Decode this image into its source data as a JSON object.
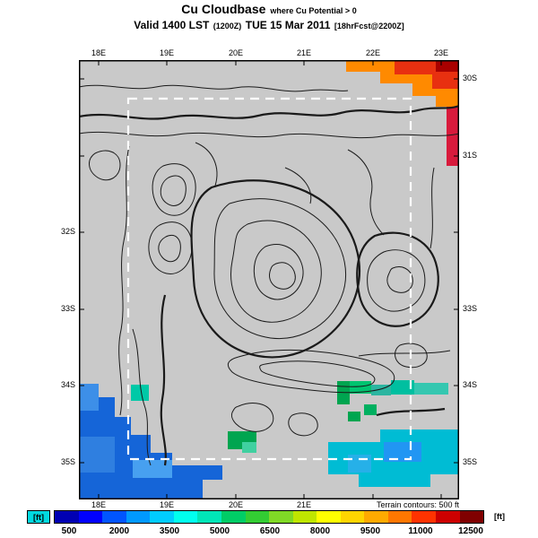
{
  "header": {
    "title": "Cu Cloudbase",
    "title_note": "where Cu Potential > 0",
    "valid_label": "Valid 1400 LST",
    "valid_utc": "(1200Z)",
    "valid_date": "TUE 15 Mar 2011",
    "forecast_note": "[18hrFcst@2200Z]"
  },
  "map": {
    "top_axis": [
      "18E",
      "19E",
      "20E",
      "21E",
      "22E",
      "23E"
    ],
    "bottom_axis": [
      "18E",
      "19E",
      "20E",
      "21E"
    ],
    "left_axis": [
      "32S",
      "33S",
      "34S",
      "35S"
    ],
    "right_axis": [
      "30S",
      "31S",
      "33S",
      "34S",
      "35S"
    ],
    "terrain_note": "Terrain contours: 500 ft",
    "land_color": "#c9c9c9",
    "contour_color": "#1a1a1a",
    "inner_boundary_color": "#ffffff"
  },
  "colorbar": {
    "unit_left": "[ft]",
    "unit_right": "[ft]",
    "ticks": [
      "500",
      "2000",
      "3500",
      "5000",
      "6500",
      "8000",
      "9500",
      "11000",
      "12500"
    ],
    "colors": [
      "#0000b3",
      "#0000ff",
      "#0055ff",
      "#0099ff",
      "#00ccff",
      "#00ffee",
      "#00e6b8",
      "#00cc66",
      "#33cc33",
      "#80d926",
      "#bfe600",
      "#ffff00",
      "#ffd500",
      "#ffaa00",
      "#ff7700",
      "#ff3300",
      "#cc0000",
      "#800000"
    ]
  }
}
